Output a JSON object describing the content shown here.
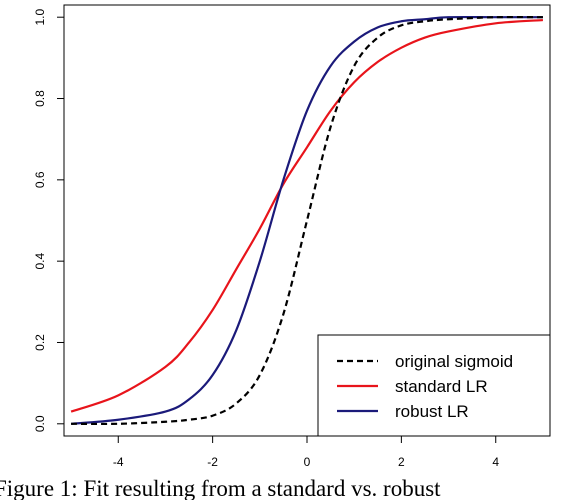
{
  "chart_data": {
    "type": "line",
    "title": "",
    "xlabel": "",
    "ylabel": "",
    "xlim": [
      -5.15,
      5.15
    ],
    "ylim": [
      -0.03,
      1.03
    ],
    "x_ticks": [
      -4,
      -2,
      0,
      2,
      4
    ],
    "x_tick_labels": [
      "-4",
      "-2",
      "0",
      "2",
      "4"
    ],
    "y_ticks": [
      0.0,
      0.2,
      0.4,
      0.6,
      0.8,
      1.0
    ],
    "y_tick_labels": [
      "0.0",
      "0.2",
      "0.4",
      "0.6",
      "0.8",
      "1.0"
    ],
    "grid": false,
    "legend_position": "bottom-right",
    "series": [
      {
        "name": "original sigmoid",
        "color": "#000000",
        "dashed": true,
        "x": [
          -5,
          -4,
          -3,
          -2.5,
          -2,
          -1.5,
          -1,
          -0.5,
          0,
          0.5,
          1,
          1.5,
          2,
          2.5,
          3,
          4,
          5
        ],
        "y": [
          0.0,
          0.0,
          0.005,
          0.01,
          0.02,
          0.05,
          0.12,
          0.27,
          0.5,
          0.73,
          0.88,
          0.95,
          0.98,
          0.99,
          0.995,
          1.0,
          1.0
        ]
      },
      {
        "name": "standard LR",
        "color": "#e8141b",
        "dashed": false,
        "x": [
          -5,
          -4,
          -3,
          -2.5,
          -2,
          -1.5,
          -1,
          -0.5,
          0,
          0.5,
          1,
          1.5,
          2,
          2.5,
          3,
          4,
          5
        ],
        "y": [
          0.03,
          0.07,
          0.14,
          0.2,
          0.28,
          0.38,
          0.48,
          0.59,
          0.68,
          0.77,
          0.84,
          0.89,
          0.925,
          0.95,
          0.965,
          0.985,
          0.993
        ]
      },
      {
        "name": "robust LR",
        "color": "#1b1a7a",
        "dashed": false,
        "x": [
          -5,
          -4,
          -3,
          -2.5,
          -2,
          -1.5,
          -1,
          -0.5,
          0,
          0.5,
          1,
          1.5,
          2,
          2.5,
          3,
          4,
          5
        ],
        "y": [
          0.0,
          0.01,
          0.03,
          0.06,
          0.12,
          0.23,
          0.4,
          0.6,
          0.77,
          0.88,
          0.94,
          0.975,
          0.99,
          0.995,
          1.0,
          1.0,
          1.0
        ]
      }
    ]
  },
  "caption": "Figure 1: Fit resulting from a standard vs. robust"
}
